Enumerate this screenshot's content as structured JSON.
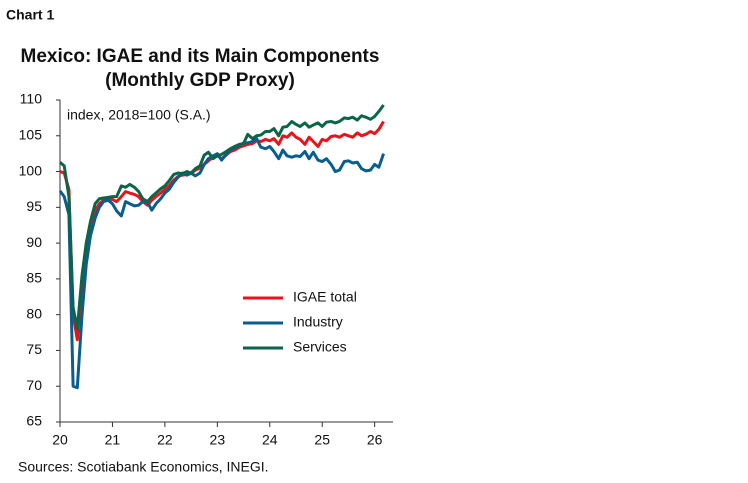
{
  "chart_data": {
    "type": "line",
    "label": "Chart 1",
    "title": "Mexico: IGAE and its Main Components",
    "subtitle": "(Monthly GDP Proxy)",
    "annotation": "index, 2018=100 (S.A.)",
    "source": "Sources: Scotiabank Economics, INEGI.",
    "x": [
      20,
      20.08,
      20.17,
      20.25,
      20.33,
      20.42,
      20.5,
      20.58,
      20.67,
      20.75,
      20.83,
      20.92,
      21,
      21.08,
      21.17,
      21.25,
      21.33,
      21.42,
      21.5,
      21.58,
      21.67,
      21.75,
      21.83,
      21.92,
      22,
      22.08,
      22.17,
      22.25,
      22.33,
      22.42,
      22.5,
      22.58,
      22.67,
      22.75,
      22.83,
      22.92,
      23,
      23.08,
      23.17,
      23.25,
      23.33,
      23.42,
      23.5,
      23.58,
      23.67,
      23.75,
      23.83,
      23.92,
      24,
      24.08,
      24.17,
      24.25,
      24.33,
      24.42,
      24.5,
      24.58,
      24.67,
      24.75,
      24.83,
      24.92,
      25,
      25.08,
      25.17,
      25.25,
      25.33,
      25.42,
      25.5,
      25.58,
      25.67,
      25.75,
      25.83,
      25.92,
      26,
      26.08,
      26.17
    ],
    "series": [
      {
        "name": "IGAE total",
        "color": "#e8141c",
        "values": [
          100,
          99.8,
          97.5,
          80,
          76.5,
          84,
          89,
          92,
          94.5,
          95.5,
          96,
          96.2,
          96.1,
          95.8,
          96.5,
          97.2,
          97,
          96.8,
          96.5,
          95.8,
          95.3,
          96,
          96.5,
          97,
          97.5,
          98,
          98.8,
          99.3,
          99.5,
          99.6,
          99.7,
          100.2,
          100.5,
          101,
          101.5,
          102,
          102.2,
          101.8,
          102.3,
          102.8,
          103,
          103.4,
          103.6,
          103.8,
          103.9,
          104.3,
          104.2,
          104.5,
          104.3,
          104.6,
          103.8,
          105,
          104.8,
          105.4,
          104.8,
          104.5,
          103.8,
          104.8,
          104.2,
          103.5,
          104.5,
          104.3,
          104.9,
          105,
          104.8,
          105.2,
          105,
          104.8,
          105.4,
          105,
          105.2,
          105.6,
          105.3,
          105.9,
          107
        ]
      },
      {
        "name": "Industry",
        "color": "#0a5d8c",
        "values": [
          97.3,
          96.5,
          94,
          70,
          69.8,
          80,
          87,
          91,
          93.5,
          95,
          95.8,
          96,
          95.5,
          94.5,
          93.8,
          95.8,
          95.5,
          95.2,
          95.3,
          95.8,
          95.7,
          94.6,
          95.5,
          96.2,
          97,
          97.5,
          98.5,
          99.2,
          99.8,
          99.5,
          99.8,
          99.4,
          99.8,
          101,
          101.8,
          102.2,
          102.5,
          101.6,
          102.4,
          103,
          103.3,
          103.6,
          104,
          104,
          104.2,
          104.6,
          103.4,
          103.2,
          103.5,
          102.8,
          101.8,
          103,
          102.2,
          102,
          102.2,
          102.1,
          102.8,
          101.8,
          102.7,
          101.6,
          101.4,
          101.8,
          101,
          100,
          100.2,
          101.4,
          101.5,
          101.2,
          101.3,
          100.4,
          100.1,
          100.2,
          101,
          100.6,
          102.5
        ]
      },
      {
        "name": "Services",
        "color": "#0b6648",
        "values": [
          101.3,
          100.8,
          96.5,
          81,
          78,
          85.5,
          90,
          93,
          95.5,
          96.2,
          96.3,
          96.4,
          96.5,
          96.5,
          98,
          97.8,
          98.2,
          97.8,
          97.2,
          96.2,
          95.8,
          96.5,
          97,
          97.6,
          98,
          98.7,
          99.6,
          99.8,
          99.7,
          100,
          99.8,
          100.4,
          100.8,
          102.3,
          102.7,
          101.8,
          102.2,
          102.4,
          102.8,
          103.2,
          103.5,
          103.8,
          103.9,
          105.2,
          104.6,
          105,
          105.1,
          105.6,
          105.6,
          106,
          105,
          106.2,
          106.3,
          107,
          106.6,
          106.3,
          106.8,
          106.2,
          106.5,
          106.8,
          106.3,
          106.9,
          107,
          106.8,
          107,
          107.5,
          107.4,
          107.6,
          107.2,
          107.8,
          107.6,
          107.3,
          107.7,
          108.4,
          109.3
        ]
      }
    ],
    "xlim": [
      20,
      26.35
    ],
    "xticks": [
      20,
      21,
      22,
      23,
      24,
      25,
      26
    ],
    "ylim": [
      65,
      110
    ],
    "yticks": [
      65,
      70,
      75,
      80,
      85,
      90,
      95,
      100,
      105,
      110
    ],
    "grid": false,
    "legend": "center right"
  }
}
